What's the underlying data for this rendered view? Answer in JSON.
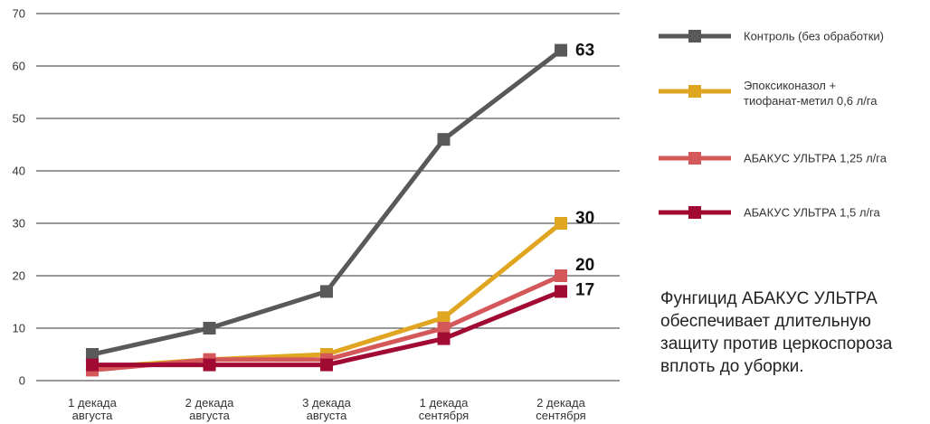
{
  "chart_data": {
    "type": "line",
    "title": "",
    "xlabel": "",
    "ylabel": "",
    "ylim": [
      0,
      70
    ],
    "yticks": [
      0,
      10,
      20,
      30,
      40,
      50,
      60,
      70
    ],
    "grid": true,
    "legend_position": "right",
    "categories": [
      [
        "1 декада",
        "августа"
      ],
      [
        "2 декада",
        "августа"
      ],
      [
        "3 декада",
        "августа"
      ],
      [
        "1 декада",
        "сентября"
      ],
      [
        "2 декада",
        "сентября"
      ]
    ],
    "series": [
      {
        "name": "Контроль (без обработки)",
        "name_lines": [
          "Контроль (без обработки)"
        ],
        "color": "#595959",
        "values": [
          5,
          10,
          17,
          46,
          63
        ],
        "end_label": "63"
      },
      {
        "name": "Эпоксиконазол + тиофанат-метил 0,6 л/га",
        "name_lines": [
          "Эпоксиконазол +",
          "тиофанат-метил 0,6 л/га"
        ],
        "color": "#E0A521",
        "values": [
          2.5,
          4,
          5,
          12,
          30
        ],
        "end_label": "30"
      },
      {
        "name": "АБАКУС УЛЬТРА 1,25 л/га",
        "name_lines": [
          "АБАКУС УЛЬТРА 1,25 л/га"
        ],
        "color": "#D4585A",
        "values": [
          2,
          4,
          4,
          10,
          20
        ],
        "end_label": "20"
      },
      {
        "name": "АБАКУС УЛЬТРА 1,5 л/га",
        "name_lines": [
          "АБАКУС УЛЬТРА 1,5 л/га"
        ],
        "color": "#A10A33",
        "values": [
          3,
          3,
          3,
          8,
          17
        ],
        "end_label": "17"
      }
    ]
  },
  "note": "Фунгицид АБАКУС УЛЬТРА обеспечивает длительную защиту против церкоспороза вплоть до уборки."
}
